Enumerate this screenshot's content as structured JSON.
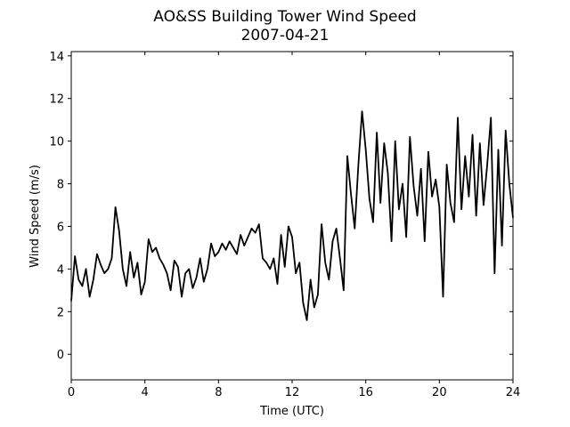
{
  "chart_data": {
    "type": "line",
    "title": "AO&SS Building Tower Wind Speed",
    "subtitle": "2007-04-21",
    "x_label": "Time (UTC)",
    "y_label": "Wind Speed (m/s)",
    "xlim": [
      0,
      24
    ],
    "xticks": [
      0,
      4,
      8,
      12,
      16,
      20,
      24
    ],
    "ylim": [
      -1.2,
      14.2
    ],
    "yticks": [
      0,
      2,
      4,
      6,
      8,
      10,
      12,
      14
    ],
    "series": [
      {
        "name": "Wind Speed",
        "color": "#000000",
        "x": [
          0,
          0.2,
          0.4,
          0.6,
          0.8,
          1,
          1.2,
          1.4,
          1.6,
          1.8,
          2,
          2.2,
          2.4,
          2.6,
          2.8,
          3,
          3.2,
          3.4,
          3.6,
          3.8,
          4,
          4.2,
          4.4,
          4.6,
          4.8,
          5,
          5.2,
          5.4,
          5.6,
          5.8,
          6,
          6.2,
          6.4,
          6.6,
          6.8,
          7,
          7.2,
          7.4,
          7.6,
          7.8,
          8,
          8.2,
          8.4,
          8.6,
          8.8,
          9,
          9.2,
          9.4,
          9.6,
          9.8,
          10,
          10.2,
          10.4,
          10.6,
          10.8,
          11,
          11.2,
          11.4,
          11.6,
          11.8,
          12,
          12.2,
          12.4,
          12.6,
          12.8,
          13,
          13.2,
          13.4,
          13.6,
          13.8,
          14,
          14.2,
          14.4,
          14.6,
          14.8,
          15,
          15.2,
          15.4,
          15.6,
          15.8,
          16,
          16.2,
          16.4,
          16.6,
          16.8,
          17,
          17.2,
          17.4,
          17.6,
          17.8,
          18,
          18.2,
          18.4,
          18.6,
          18.8,
          19,
          19.2,
          19.4,
          19.6,
          19.8,
          20,
          20.2,
          20.4,
          20.6,
          20.8,
          21,
          21.2,
          21.4,
          21.6,
          21.8,
          22,
          22.2,
          22.4,
          22.6,
          22.8,
          23,
          23.2,
          23.4,
          23.6,
          23.8,
          24
        ],
        "values": [
          2.5,
          4.6,
          3.5,
          3.2,
          4.0,
          2.7,
          3.5,
          4.7,
          4.2,
          3.8,
          4.0,
          4.5,
          6.9,
          5.8,
          4.0,
          3.2,
          4.8,
          3.6,
          4.3,
          2.8,
          3.4,
          5.4,
          4.8,
          5.0,
          4.5,
          4.2,
          3.8,
          3.0,
          4.4,
          4.1,
          2.7,
          3.8,
          4.0,
          3.1,
          3.6,
          4.5,
          3.4,
          4.0,
          5.2,
          4.6,
          4.8,
          5.2,
          4.9,
          5.3,
          5.0,
          4.7,
          5.6,
          5.1,
          5.5,
          5.9,
          5.7,
          6.1,
          4.5,
          4.3,
          4.0,
          4.5,
          3.3,
          5.6,
          4.1,
          6.0,
          5.5,
          3.8,
          4.3,
          2.4,
          1.6,
          3.5,
          2.2,
          2.8,
          6.1,
          4.3,
          3.5,
          5.3,
          5.9,
          4.5,
          3.0,
          9.3,
          7.5,
          5.9,
          8.9,
          11.4,
          9.6,
          7.3,
          6.2,
          10.4,
          7.1,
          9.9,
          8.5,
          5.3,
          10.0,
          6.8,
          8.0,
          5.5,
          10.2,
          7.9,
          6.5,
          8.7,
          5.3,
          9.5,
          7.4,
          8.2,
          6.9,
          2.7,
          8.9,
          7.1,
          6.2,
          11.1,
          6.8,
          9.3,
          7.4,
          10.3,
          6.5,
          9.9,
          7.0,
          8.9,
          11.1,
          3.8,
          9.6,
          5.1,
          10.5,
          8.0,
          6.4
        ]
      }
    ]
  }
}
